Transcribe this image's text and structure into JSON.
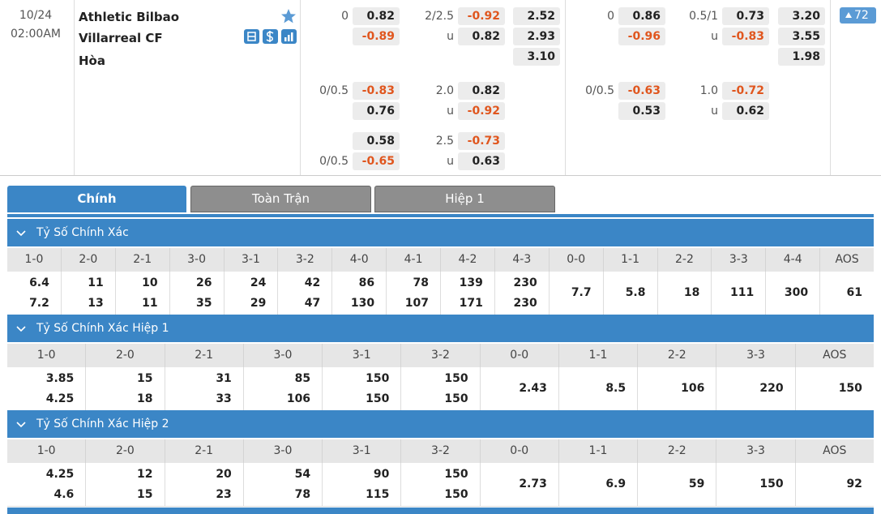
{
  "match": {
    "date": "10/24",
    "time": "02:00AM",
    "home": "Athletic Bilbao",
    "away": "Villarreal CF",
    "draw": "Hòa",
    "more": "72",
    "full_time": {
      "handicap": [
        {
          "home_line": "0",
          "home": "0.82",
          "away": "-0.89"
        },
        {
          "home_line": "0/0.5",
          "home": "-0.83",
          "away": "0.76"
        },
        {
          "home": "0.58",
          "away_line": "0/0.5",
          "away": "-0.65"
        }
      ],
      "over_under": [
        {
          "line": "2/2.5",
          "over": "-0.92",
          "under_label": "u",
          "under": "0.82"
        },
        {
          "line": "2.0",
          "over": "0.82",
          "under_label": "u",
          "under": "-0.92"
        },
        {
          "line": "2.5",
          "over": "-0.73",
          "under_label": "u",
          "under": "0.63"
        }
      ],
      "1x2": [
        "2.52",
        "2.93",
        "3.10"
      ]
    },
    "first_half": {
      "handicap": [
        {
          "home_line": "0",
          "home": "0.86",
          "away": "-0.96"
        },
        {
          "home_line": "0/0.5",
          "home": "-0.63",
          "away": "0.53"
        }
      ],
      "over_under": [
        {
          "line": "0.5/1",
          "over": "0.73",
          "under_label": "u",
          "under": "-0.83"
        },
        {
          "line": "1.0",
          "over": "-0.72",
          "under_label": "u",
          "under": "0.62"
        }
      ],
      "1x2": [
        "3.20",
        "3.55",
        "1.98"
      ]
    }
  },
  "tabs": [
    "Chính",
    "Toàn Trận",
    "Hiệp 1"
  ],
  "sections": [
    {
      "title": "Tỷ Số Chính Xác",
      "columns": [
        {
          "label": "1-0",
          "values": [
            "6.4",
            "7.2"
          ]
        },
        {
          "label": "2-0",
          "values": [
            "11",
            "13"
          ]
        },
        {
          "label": "2-1",
          "values": [
            "10",
            "11"
          ]
        },
        {
          "label": "3-0",
          "values": [
            "26",
            "35"
          ]
        },
        {
          "label": "3-1",
          "values": [
            "24",
            "29"
          ]
        },
        {
          "label": "3-2",
          "values": [
            "42",
            "47"
          ]
        },
        {
          "label": "4-0",
          "values": [
            "86",
            "130"
          ]
        },
        {
          "label": "4-1",
          "values": [
            "78",
            "107"
          ]
        },
        {
          "label": "4-2",
          "values": [
            "139",
            "171"
          ]
        },
        {
          "label": "4-3",
          "values": [
            "230",
            "230"
          ]
        },
        {
          "label": "0-0",
          "values": [
            "7.7"
          ]
        },
        {
          "label": "1-1",
          "values": [
            "5.8"
          ]
        },
        {
          "label": "2-2",
          "values": [
            "18"
          ]
        },
        {
          "label": "3-3",
          "values": [
            "111"
          ]
        },
        {
          "label": "4-4",
          "values": [
            "300"
          ]
        },
        {
          "label": "AOS",
          "values": [
            "61"
          ]
        }
      ]
    },
    {
      "title": "Tỷ Số Chính Xác Hiệp 1",
      "columns": [
        {
          "label": "1-0",
          "values": [
            "3.85",
            "4.25"
          ]
        },
        {
          "label": "2-0",
          "values": [
            "15",
            "18"
          ]
        },
        {
          "label": "2-1",
          "values": [
            "31",
            "33"
          ]
        },
        {
          "label": "3-0",
          "values": [
            "85",
            "106"
          ]
        },
        {
          "label": "3-1",
          "values": [
            "150",
            "150"
          ]
        },
        {
          "label": "3-2",
          "values": [
            "150",
            "150"
          ]
        },
        {
          "label": "0-0",
          "values": [
            "2.43"
          ]
        },
        {
          "label": "1-1",
          "values": [
            "8.5"
          ]
        },
        {
          "label": "2-2",
          "values": [
            "106"
          ]
        },
        {
          "label": "3-3",
          "values": [
            "220"
          ]
        },
        {
          "label": "AOS",
          "values": [
            "150"
          ]
        }
      ]
    },
    {
      "title": "Tỷ Số Chính Xác Hiệp 2",
      "columns": [
        {
          "label": "1-0",
          "values": [
            "4.25",
            "4.6"
          ]
        },
        {
          "label": "2-0",
          "values": [
            "12",
            "15"
          ]
        },
        {
          "label": "2-1",
          "values": [
            "20",
            "23"
          ]
        },
        {
          "label": "3-0",
          "values": [
            "54",
            "78"
          ]
        },
        {
          "label": "3-1",
          "values": [
            "90",
            "115"
          ]
        },
        {
          "label": "3-2",
          "values": [
            "150",
            "150"
          ]
        },
        {
          "label": "0-0",
          "values": [
            "2.73"
          ]
        },
        {
          "label": "1-1",
          "values": [
            "6.9"
          ]
        },
        {
          "label": "2-2",
          "values": [
            "59"
          ]
        },
        {
          "label": "3-3",
          "values": [
            "150"
          ]
        },
        {
          "label": "AOS",
          "values": [
            "92"
          ]
        }
      ]
    }
  ]
}
